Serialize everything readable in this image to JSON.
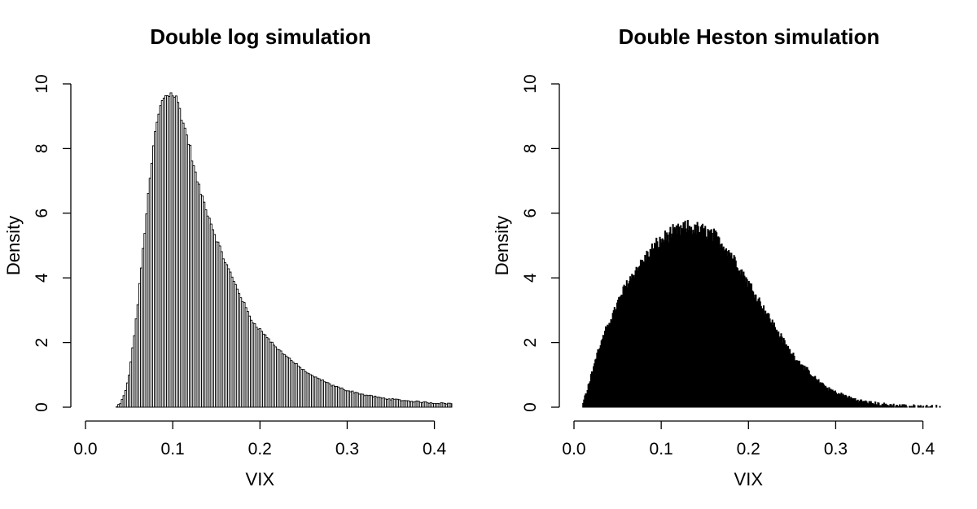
{
  "chart_data": [
    {
      "type": "bar",
      "title": "Double log simulation",
      "xlabel": "VIX",
      "ylabel": "Density",
      "xlim": [
        0.0,
        0.42
      ],
      "ylim": [
        0,
        10
      ],
      "x_ticks": [
        "0.0",
        "0.1",
        "0.2",
        "0.3",
        "0.4"
      ],
      "y_ticks": [
        "0",
        "2",
        "4",
        "6",
        "8",
        "10"
      ],
      "bar_fill": "#ffffff",
      "bar_stroke": "#000000",
      "bin_start": 0.035,
      "bin_width": 0.002,
      "density_curve": [
        [
          0.035,
          0.0
        ],
        [
          0.04,
          0.1
        ],
        [
          0.045,
          0.4
        ],
        [
          0.05,
          1.0
        ],
        [
          0.055,
          2.0
        ],
        [
          0.06,
          3.2
        ],
        [
          0.065,
          4.6
        ],
        [
          0.07,
          6.0
        ],
        [
          0.075,
          7.3
        ],
        [
          0.08,
          8.5
        ],
        [
          0.085,
          9.2
        ],
        [
          0.09,
          9.6
        ],
        [
          0.095,
          9.7
        ],
        [
          0.1,
          9.7
        ],
        [
          0.105,
          9.5
        ],
        [
          0.11,
          9.0
        ],
        [
          0.115,
          8.5
        ],
        [
          0.12,
          8.0
        ],
        [
          0.125,
          7.3
        ],
        [
          0.13,
          6.8
        ],
        [
          0.14,
          6.0
        ],
        [
          0.15,
          5.2
        ],
        [
          0.16,
          4.5
        ],
        [
          0.17,
          3.9
        ],
        [
          0.18,
          3.3
        ],
        [
          0.19,
          2.7
        ],
        [
          0.2,
          2.4
        ],
        [
          0.21,
          2.1
        ],
        [
          0.22,
          1.8
        ],
        [
          0.23,
          1.6
        ],
        [
          0.24,
          1.35
        ],
        [
          0.25,
          1.15
        ],
        [
          0.26,
          0.95
        ],
        [
          0.27,
          0.85
        ],
        [
          0.28,
          0.7
        ],
        [
          0.3,
          0.52
        ],
        [
          0.32,
          0.38
        ],
        [
          0.34,
          0.28
        ],
        [
          0.36,
          0.22
        ],
        [
          0.38,
          0.17
        ],
        [
          0.4,
          0.13
        ],
        [
          0.42,
          0.11
        ]
      ]
    },
    {
      "type": "bar",
      "title": "Double Heston simulation",
      "xlabel": "VIX",
      "ylabel": "Density",
      "xlim": [
        0.0,
        0.42
      ],
      "ylim": [
        0,
        10
      ],
      "x_ticks": [
        "0.0",
        "0.1",
        "0.2",
        "0.3",
        "0.4"
      ],
      "y_ticks": [
        "0",
        "2",
        "4",
        "6",
        "8",
        "10"
      ],
      "bar_fill": "#000000",
      "bar_stroke": "#000000",
      "bin_start": 0.01,
      "bin_width": 0.001,
      "density_curve": [
        [
          0.01,
          0.0
        ],
        [
          0.012,
          0.35
        ],
        [
          0.015,
          0.5
        ],
        [
          0.02,
          1.0
        ],
        [
          0.025,
          1.5
        ],
        [
          0.03,
          1.9
        ],
        [
          0.04,
          2.6
        ],
        [
          0.05,
          3.2
        ],
        [
          0.06,
          3.8
        ],
        [
          0.07,
          4.2
        ],
        [
          0.08,
          4.55
        ],
        [
          0.09,
          4.9
        ],
        [
          0.1,
          5.15
        ],
        [
          0.11,
          5.35
        ],
        [
          0.12,
          5.45
        ],
        [
          0.13,
          5.55
        ],
        [
          0.14,
          5.5
        ],
        [
          0.15,
          5.45
        ],
        [
          0.16,
          5.3
        ],
        [
          0.17,
          5.05
        ],
        [
          0.18,
          4.75
        ],
        [
          0.19,
          4.3
        ],
        [
          0.2,
          3.85
        ],
        [
          0.21,
          3.4
        ],
        [
          0.22,
          2.95
        ],
        [
          0.23,
          2.5
        ],
        [
          0.24,
          2.05
        ],
        [
          0.25,
          1.65
        ],
        [
          0.26,
          1.35
        ],
        [
          0.27,
          1.05
        ],
        [
          0.28,
          0.8
        ],
        [
          0.29,
          0.6
        ],
        [
          0.3,
          0.45
        ],
        [
          0.31,
          0.35
        ],
        [
          0.32,
          0.25
        ],
        [
          0.33,
          0.18
        ],
        [
          0.34,
          0.13
        ],
        [
          0.35,
          0.09
        ],
        [
          0.36,
          0.06
        ],
        [
          0.37,
          0.045
        ],
        [
          0.38,
          0.03
        ],
        [
          0.39,
          0.02
        ],
        [
          0.4,
          0.012
        ],
        [
          0.42,
          0.005
        ]
      ]
    }
  ]
}
